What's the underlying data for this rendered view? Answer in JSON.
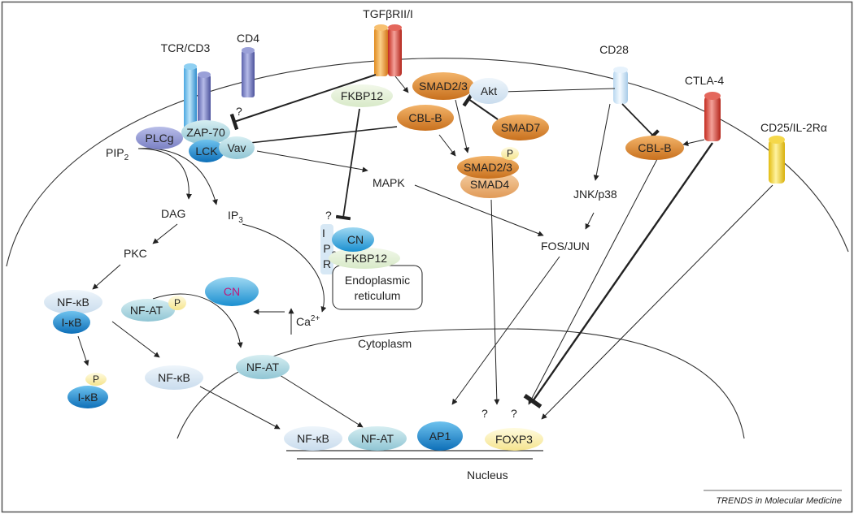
{
  "receptors": {
    "tcr": "TCR/CD3",
    "cd4": "CD4",
    "tgfb": "TGFβRII/I",
    "cd28": "CD28",
    "ctla4": "CTLA-4",
    "cd25": "CD25/IL-2Rα"
  },
  "molecules": {
    "zap70": "ZAP-70",
    "plcg": "PLCg",
    "lck": "LCK",
    "vav": "Vav",
    "fkbp12_top": "FKBP12",
    "smad23_top": "SMAD2/3",
    "akt": "Akt",
    "cblb_left": "CBL-B",
    "smad7": "SMAD7",
    "cblb_right": "CBL-B",
    "p_smad": "P",
    "smad23_complex": "SMAD2/3",
    "smad4": "SMAD4",
    "cn_er": "CN",
    "fkbp12_er": "FKBP12",
    "ip3r_i": "I",
    "ip3r_p": "P",
    "ip3r_3": "3",
    "ip3r_r": "R",
    "cn_free": "CN",
    "nfkb_ikb": "NF-κB",
    "ikb": "I-κB",
    "nfat_p": "NF-AT",
    "p_nfat": "P",
    "p_ikb": "P",
    "ikb_p": "I-κB",
    "nfkb_free": "NF-κB",
    "nfat_free": "NF-AT",
    "nuc_nfkb": "NF-κB",
    "nuc_nfat": "NF-AT",
    "nuc_ap1": "AP1",
    "nuc_foxp3": "FOXP3"
  },
  "labels": {
    "pip2": "PIP",
    "pip2_sub": "2",
    "dag": "DAG",
    "ip3": "IP",
    "ip3_sub": "3",
    "pkc": "PKC",
    "mapk": "MAPK",
    "jnk": "JNK/p38",
    "fosjun": "FOS/JUN",
    "ca": "Ca",
    "ca_sup": "2+",
    "er_line1": "Endoplasmic",
    "er_line2": "reticulum",
    "cytoplasm": "Cytoplasm",
    "nucleus": "Nucleus",
    "q_cd4": "?",
    "q_ip3r": "?",
    "q_ap1": "?",
    "q_foxp3": "?"
  },
  "credit": "TRENDS in Molecular Medicine"
}
